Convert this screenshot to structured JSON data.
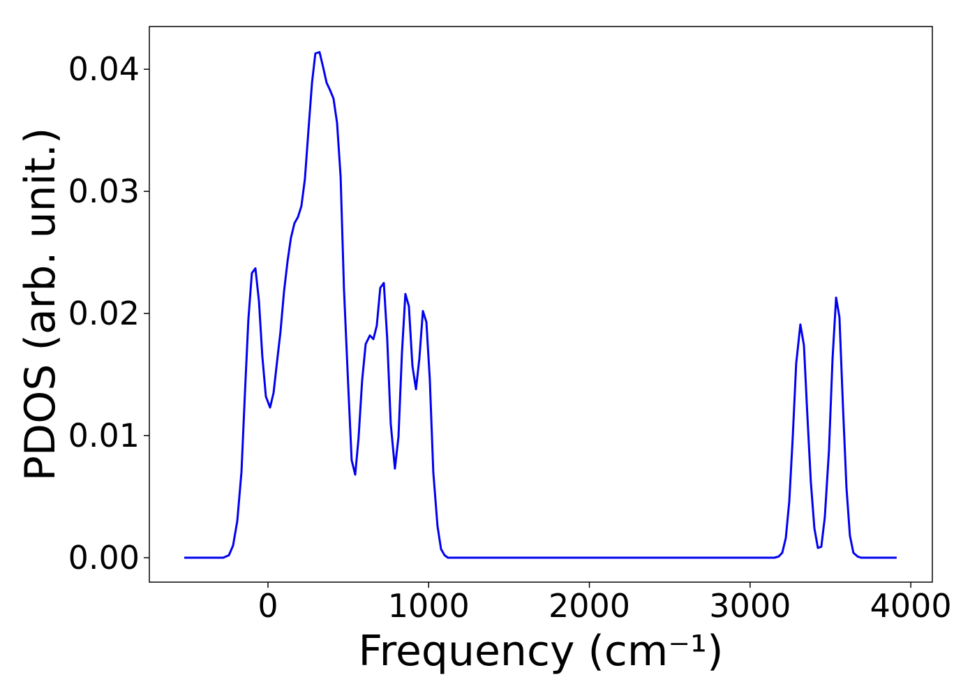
{
  "chart_data": {
    "type": "line",
    "x_label": "Frequency (cm⁻¹)",
    "y_label": "PDOS (arb. unit.)",
    "x": [
      -521,
      -278,
      -243,
      -217,
      -191,
      -165,
      -143,
      -122,
      -100,
      -78,
      -56,
      -35,
      -13,
      13,
      35,
      56,
      78,
      100,
      122,
      143,
      165,
      187,
      208,
      230,
      252,
      274,
      295,
      321,
      343,
      365,
      386,
      408,
      430,
      452,
      473,
      499,
      521,
      543,
      564,
      586,
      608,
      634,
      656,
      677,
      699,
      721,
      742,
      764,
      790,
      812,
      834,
      855,
      877,
      899,
      921,
      942,
      964,
      986,
      1007,
      1029,
      1055,
      1077,
      1099,
      1120,
      3152,
      3178,
      3200,
      3222,
      3244,
      3265,
      3287,
      3313,
      3335,
      3356,
      3378,
      3400,
      3422,
      3443,
      3465,
      3491,
      3513,
      3535,
      3556,
      3578,
      3600,
      3621,
      3643,
      3669,
      3691,
      3912
    ],
    "series": [
      {
        "name": "PDOS",
        "color": "#0000ee",
        "values": [
          0,
          0,
          0.0002,
          0.001,
          0.003,
          0.007,
          0.0135,
          0.0195,
          0.0233,
          0.0237,
          0.021,
          0.0165,
          0.0132,
          0.0123,
          0.0135,
          0.016,
          0.0185,
          0.0218,
          0.0243,
          0.0262,
          0.0274,
          0.0279,
          0.0288,
          0.031,
          0.035,
          0.0389,
          0.0413,
          0.0414,
          0.0402,
          0.0389,
          0.0383,
          0.0376,
          0.0356,
          0.0312,
          0.022,
          0.0142,
          0.008,
          0.0068,
          0.0098,
          0.0145,
          0.0175,
          0.0182,
          0.0179,
          0.019,
          0.0221,
          0.0225,
          0.018,
          0.011,
          0.0073,
          0.0099,
          0.0168,
          0.0216,
          0.0206,
          0.0157,
          0.0138,
          0.0163,
          0.0202,
          0.0193,
          0.0146,
          0.007,
          0.0026,
          0.0007,
          0.0002,
          0,
          0,
          0.0001,
          0.0004,
          0.0016,
          0.0046,
          0.0098,
          0.0159,
          0.0191,
          0.0174,
          0.0118,
          0.0062,
          0.0024,
          0.0008,
          0.0009,
          0.0033,
          0.0088,
          0.0163,
          0.0213,
          0.0197,
          0.0123,
          0.0057,
          0.0018,
          0.0004,
          0.0001,
          0,
          0
        ]
      }
    ],
    "xlim": [
      -738,
      4134
    ],
    "xticks": [
      0,
      1000,
      2000,
      3000,
      4000
    ],
    "ylim": [
      -0.002,
      0.0435
    ],
    "yticks": [
      {
        "value": 0,
        "label": "0.00"
      },
      0.01,
      0.02,
      0.03,
      0.04
    ]
  }
}
